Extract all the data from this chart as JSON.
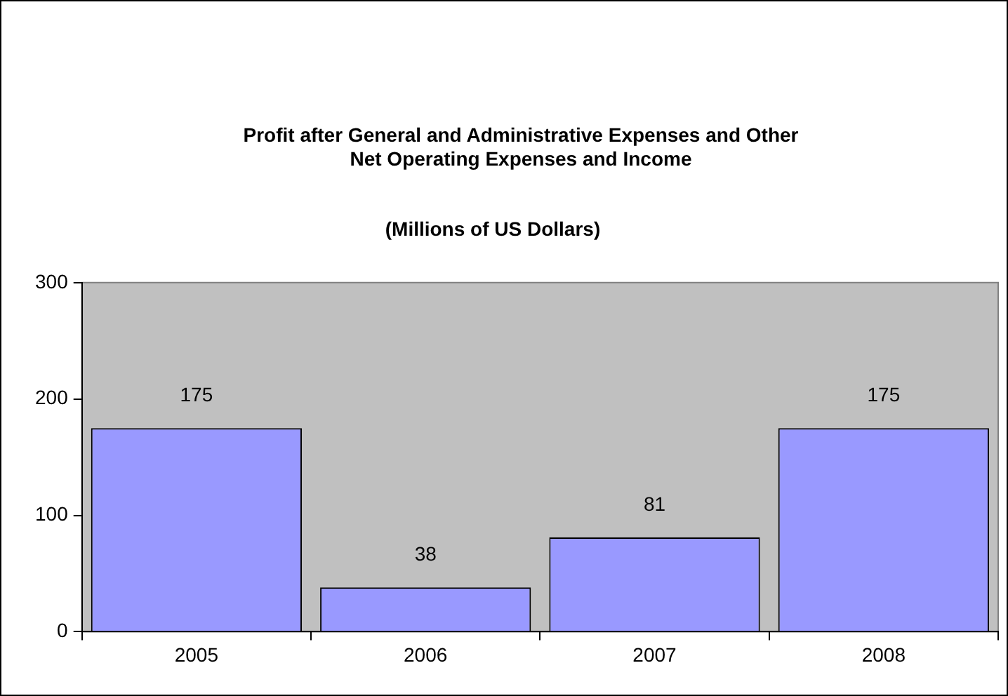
{
  "chart_data": {
    "type": "bar",
    "title": "Profit after General and Administrative Expenses and Other Net Operating Expenses and Income",
    "subtitle": "(Millions of US Dollars)",
    "categories": [
      "2005",
      "2006",
      "2007",
      "2008"
    ],
    "values": [
      175,
      38,
      81,
      175
    ],
    "color": "#9999ff",
    "ylim": [
      0,
      300
    ],
    "yticks": [
      0,
      100,
      200,
      300
    ],
    "grid": false,
    "legend": false,
    "data_labels": true
  }
}
